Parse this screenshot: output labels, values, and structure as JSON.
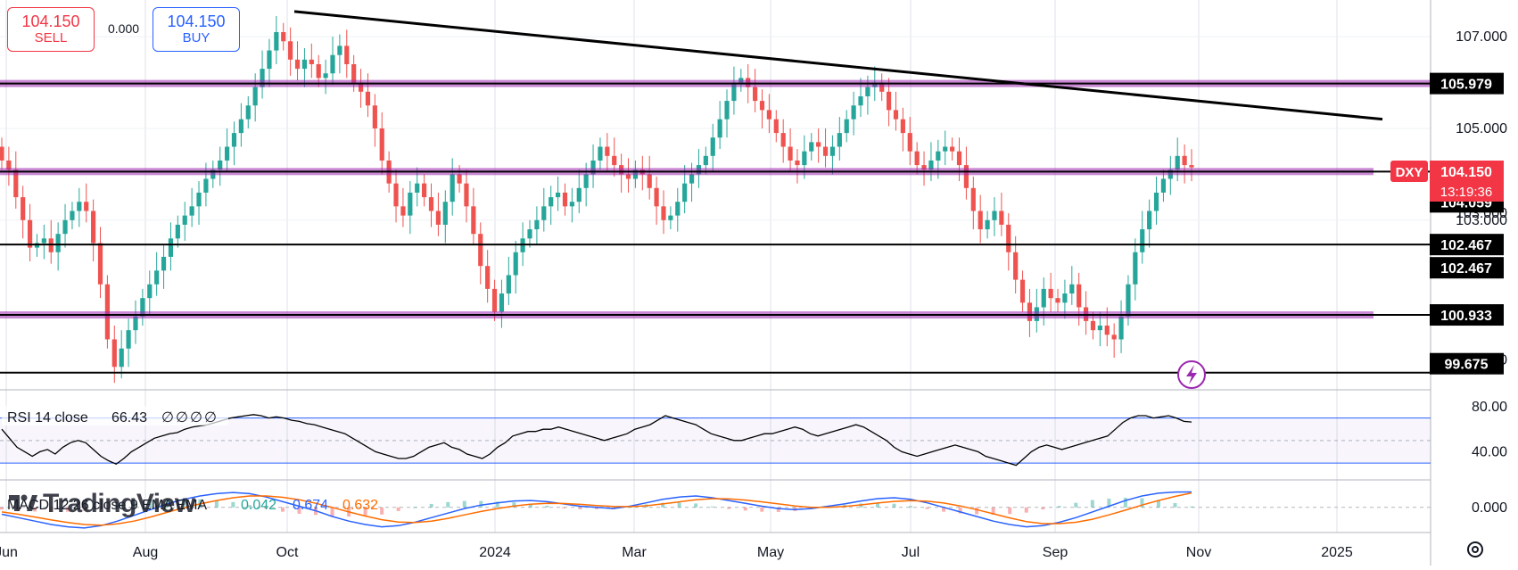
{
  "trade_panel": {
    "sell_price": "104.150",
    "sell_label": "SELL",
    "spread": "0.000",
    "buy_price": "104.150",
    "buy_label": "BUY"
  },
  "watermark": "TradingView",
  "colors": {
    "up": "#26a69a",
    "down": "#ef5350",
    "level_line": "#000000",
    "level_band": "#9c27b0",
    "rsi_line": "#000000",
    "rsi_band": "#2962ff",
    "macd_line": "#2962ff",
    "signal_line": "#ff6d00",
    "hist": "#26a69a",
    "symbol_label": "#f23645"
  },
  "chart_data": [
    {
      "type": "candlestick",
      "symbol": "DXY",
      "x_ticks": [
        "Jun",
        "Aug",
        "Oct",
        "2024",
        "Mar",
        "May",
        "Jul",
        "Sep",
        "Nov",
        "2025"
      ],
      "y_ticks": [
        "107.000",
        "105.000",
        "103.000"
      ],
      "ylim": [
        99.3,
        107.8
      ],
      "last_price": "104.150",
      "countdown": "13:19:36",
      "closes": [
        104.3,
        104.1,
        103.5,
        103.0,
        102.4,
        102.5,
        102.6,
        102.3,
        102.7,
        103.0,
        103.2,
        103.4,
        103.2,
        102.5,
        101.6,
        100.4,
        99.8,
        100.2,
        100.6,
        100.9,
        101.3,
        101.6,
        101.9,
        102.2,
        102.6,
        102.9,
        103.1,
        103.3,
        103.6,
        103.9,
        104.1,
        104.3,
        104.6,
        104.9,
        105.2,
        105.5,
        105.9,
        106.3,
        106.7,
        107.1,
        106.9,
        106.5,
        106.3,
        106.5,
        106.4,
        106.1,
        106.2,
        106.6,
        106.8,
        106.4,
        106.0,
        105.8,
        105.5,
        105.0,
        104.3,
        103.8,
        103.3,
        103.1,
        103.6,
        103.8,
        103.5,
        103.2,
        102.9,
        103.4,
        104.0,
        103.8,
        103.3,
        102.7,
        102.0,
        101.5,
        101.0,
        101.4,
        101.8,
        102.3,
        102.6,
        102.8,
        103.0,
        103.3,
        103.5,
        103.6,
        103.3,
        103.4,
        103.7,
        104.0,
        104.3,
        104.6,
        104.4,
        104.2,
        104.0,
        103.9,
        104.1,
        104.0,
        103.7,
        103.3,
        103.0,
        103.1,
        103.4,
        103.8,
        104.0,
        104.2,
        104.4,
        104.8,
        105.2,
        105.6,
        106.0,
        106.1,
        105.9,
        105.6,
        105.4,
        105.2,
        104.9,
        104.6,
        104.3,
        104.2,
        104.5,
        104.7,
        104.6,
        104.4,
        104.6,
        104.9,
        105.2,
        105.5,
        105.7,
        105.9,
        106.0,
        105.8,
        105.4,
        105.2,
        104.9,
        104.5,
        104.2,
        104.1,
        104.3,
        104.5,
        104.6,
        104.5,
        104.2,
        103.7,
        103.2,
        102.8,
        103.0,
        103.2,
        102.9,
        102.3,
        101.7,
        101.2,
        100.8,
        101.1,
        101.5,
        101.3,
        101.2,
        101.4,
        101.6,
        101.1,
        100.8,
        100.6,
        100.7,
        100.5,
        100.4,
        100.9,
        101.6,
        102.3,
        102.8,
        103.2,
        103.6,
        103.9,
        104.1,
        104.4,
        104.2,
        104.15
      ]
    },
    {
      "type": "line",
      "title": "RSI 14 close",
      "value": "66.43",
      "placeholders": [
        "∅",
        "∅",
        "∅",
        "∅"
      ],
      "y_ticks": [
        "80.00",
        "40.00"
      ],
      "ylim": [
        15,
        95
      ],
      "bands": [
        70,
        30
      ],
      "values": [
        60,
        52,
        44,
        40,
        36,
        40,
        42,
        38,
        44,
        48,
        50,
        48,
        42,
        36,
        32,
        29,
        34,
        40,
        44,
        48,
        52,
        54,
        56,
        57,
        60,
        62,
        63,
        64,
        66,
        68,
        70,
        71,
        72,
        73,
        72,
        70,
        71,
        70,
        68,
        67,
        65,
        64,
        62,
        60,
        58,
        56,
        52,
        48,
        44,
        40,
        38,
        36,
        34,
        34,
        36,
        40,
        44,
        46,
        48,
        44,
        42,
        38,
        36,
        34,
        38,
        44,
        48,
        54,
        56,
        58,
        58,
        60,
        60,
        62,
        60,
        58,
        56,
        54,
        52,
        50,
        52,
        54,
        56,
        60,
        62,
        64,
        68,
        72,
        70,
        68,
        66,
        64,
        60,
        56,
        54,
        52,
        50,
        50,
        52,
        54,
        56,
        56,
        58,
        60,
        62,
        60,
        56,
        54,
        56,
        58,
        60,
        62,
        64,
        62,
        58,
        54,
        50,
        44,
        40,
        38,
        36,
        38,
        40,
        42,
        44,
        46,
        44,
        42,
        40,
        36,
        34,
        32,
        30,
        28,
        34,
        40,
        44,
        46,
        44,
        42,
        44,
        46,
        48,
        50,
        52,
        54,
        60,
        66,
        70,
        72,
        72,
        70,
        71,
        72,
        70,
        67,
        66.43
      ]
    },
    {
      "type": "line",
      "title": "MACD 12 26 close 9 EMA EMA",
      "values_text": [
        "0.042",
        "0.674",
        "0.632"
      ],
      "y_ticks": [
        "0.000"
      ],
      "ylim": [
        -1.1,
        1.2
      ],
      "series": [
        {
          "name": "MACD",
          "values": [
            -0.3,
            -0.45,
            -0.6,
            -0.75,
            -0.85,
            -0.9,
            -0.8,
            -0.6,
            -0.35,
            -0.1,
            0.15,
            0.35,
            0.5,
            0.6,
            0.65,
            0.6,
            0.45,
            0.25,
            0.05,
            -0.15,
            -0.4,
            -0.6,
            -0.75,
            -0.85,
            -0.8,
            -0.65,
            -0.45,
            -0.25,
            -0.05,
            0.1,
            0.2,
            0.28,
            0.3,
            0.25,
            0.15,
            0.05,
            0.0,
            -0.05,
            0.05,
            0.2,
            0.35,
            0.45,
            0.5,
            0.42,
            0.3,
            0.18,
            0.05,
            -0.05,
            -0.1,
            -0.05,
            0.05,
            0.15,
            0.28,
            0.38,
            0.42,
            0.35,
            0.2,
            0.0,
            -0.2,
            -0.4,
            -0.6,
            -0.75,
            -0.85,
            -0.8,
            -0.65,
            -0.45,
            -0.2,
            0.05,
            0.3,
            0.5,
            0.62,
            0.67,
            0.674
          ]
        },
        {
          "name": "Signal",
          "values": [
            -0.2,
            -0.3,
            -0.42,
            -0.55,
            -0.66,
            -0.75,
            -0.78,
            -0.72,
            -0.6,
            -0.42,
            -0.22,
            -0.02,
            0.15,
            0.3,
            0.42,
            0.5,
            0.5,
            0.44,
            0.33,
            0.18,
            0.0,
            -0.2,
            -0.38,
            -0.54,
            -0.64,
            -0.66,
            -0.6,
            -0.48,
            -0.33,
            -0.18,
            -0.05,
            0.06,
            0.14,
            0.18,
            0.17,
            0.13,
            0.08,
            0.04,
            0.03,
            0.07,
            0.15,
            0.24,
            0.33,
            0.38,
            0.37,
            0.32,
            0.24,
            0.15,
            0.06,
            0.0,
            0.0,
            0.04,
            0.11,
            0.19,
            0.26,
            0.29,
            0.27,
            0.19,
            0.06,
            -0.1,
            -0.28,
            -0.46,
            -0.62,
            -0.71,
            -0.71,
            -0.65,
            -0.52,
            -0.33,
            -0.12,
            0.1,
            0.3,
            0.48,
            0.632
          ]
        }
      ]
    }
  ],
  "price_labels": [
    "105.979",
    "104.059",
    "102.467",
    "102.467",
    "100.933",
    "99.675"
  ],
  "level_lines": [
    {
      "value": 105.979,
      "band": true
    },
    {
      "value": 104.059,
      "band": true
    },
    {
      "value": 102.467,
      "band": false
    },
    {
      "value": 100.933,
      "band": true
    },
    {
      "value": 99.675,
      "band": false
    }
  ],
  "trendline": {
    "from": [
      "Oct",
      107.55
    ],
    "to": [
      "2025",
      105.2
    ]
  },
  "partial_labels": [
    "101.000",
    "99.675"
  ],
  "settings_icon": "gear-icon",
  "alert_icon": "lightning-icon"
}
